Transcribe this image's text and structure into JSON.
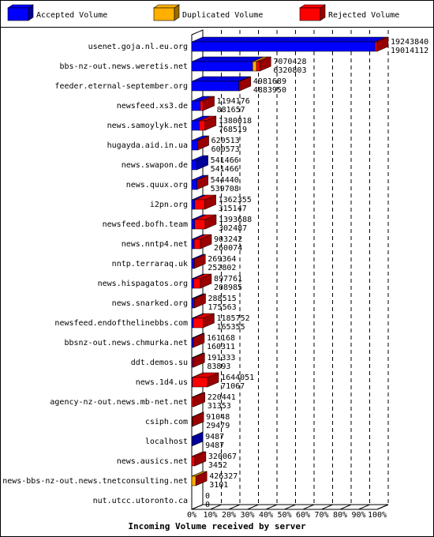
{
  "chart_data": {
    "type": "bar",
    "orientation": "horizontal",
    "stacked": true,
    "xlabel": "Incoming Volume received by server",
    "categories": [
      "usenet.goja.nl.eu.org",
      "bbs-nz-out.news.weretis.net",
      "feeder.eternal-september.org",
      "newsfeed.xs3.de",
      "news.samoylyk.net",
      "hugayda.aid.in.ua",
      "news.swapon.de",
      "news.quux.org",
      "i2pn.org",
      "newsfeed.bofh.team",
      "news.nntp4.net",
      "nntp.terraraq.uk",
      "news.hispagatos.org",
      "news.snarked.org",
      "newsfeed.endofthelinebbs.com",
      "bbsnz-out.news.chmurka.net",
      "ddt.demos.su",
      "news.1d4.us",
      "agency-nz-out.news.mb-net.net",
      "csiph.com",
      "localhost",
      "news.ausics.net",
      "news-bbs-nz-out.news.tnetconsulting.net",
      "nut.utcc.utoronto.ca"
    ],
    "totals": [
      19243840,
      7070428,
      4981689,
      1194176,
      1380018,
      620513,
      541466,
      544440,
      1362355,
      1393688,
      903242,
      269364,
      897761,
      288515,
      1185752,
      161168,
      191333,
      1644051,
      220441,
      91048,
      9487,
      320067,
      426327,
      0
    ],
    "series": [
      {
        "name": "Accepted Volume",
        "color": "#0000ff",
        "values": [
          19014112,
          6320803,
          4883950,
          881657,
          768519,
          600573,
          541466,
          539708,
          315147,
          302487,
          260074,
          252802,
          208985,
          175563,
          165355,
          160311,
          83893,
          71067,
          31353,
          29479,
          9487,
          3452,
          3101,
          0
        ]
      },
      {
        "name": "Duplicated Volume",
        "color": "#ffb000",
        "values": [
          0,
          400000,
          0,
          0,
          0,
          0,
          0,
          0,
          0,
          0,
          0,
          0,
          0,
          0,
          0,
          0,
          0,
          0,
          0,
          0,
          0,
          0,
          420000,
          0
        ]
      },
      {
        "name": "Rejected Volume",
        "color": "#ff0000",
        "values": [
          229728,
          349625,
          97739,
          312519,
          611499,
          19940,
          0,
          4732,
          1047208,
          1091201,
          643168,
          16562,
          688776,
          112952,
          1020397,
          857,
          107440,
          1572984,
          189088,
          61569,
          0,
          316615,
          3226,
          0
        ]
      }
    ],
    "xlim": [
      0,
      19243840
    ],
    "xticks": [
      {
        "value": 0,
        "label": "0%"
      },
      {
        "value": 1924384,
        "label": "10%"
      },
      {
        "value": 3848768,
        "label": "20%"
      },
      {
        "value": 5773152,
        "label": "30%"
      },
      {
        "value": 7697536,
        "label": "40%"
      },
      {
        "value": 9621920,
        "label": "50%"
      },
      {
        "value": 11546304,
        "label": "60%"
      },
      {
        "value": 13470688,
        "label": "70%"
      },
      {
        "value": 15395072,
        "label": "80%"
      },
      {
        "value": 17319456,
        "label": "90%"
      },
      {
        "value": 19243840,
        "label": "100%"
      }
    ],
    "grid": true
  }
}
